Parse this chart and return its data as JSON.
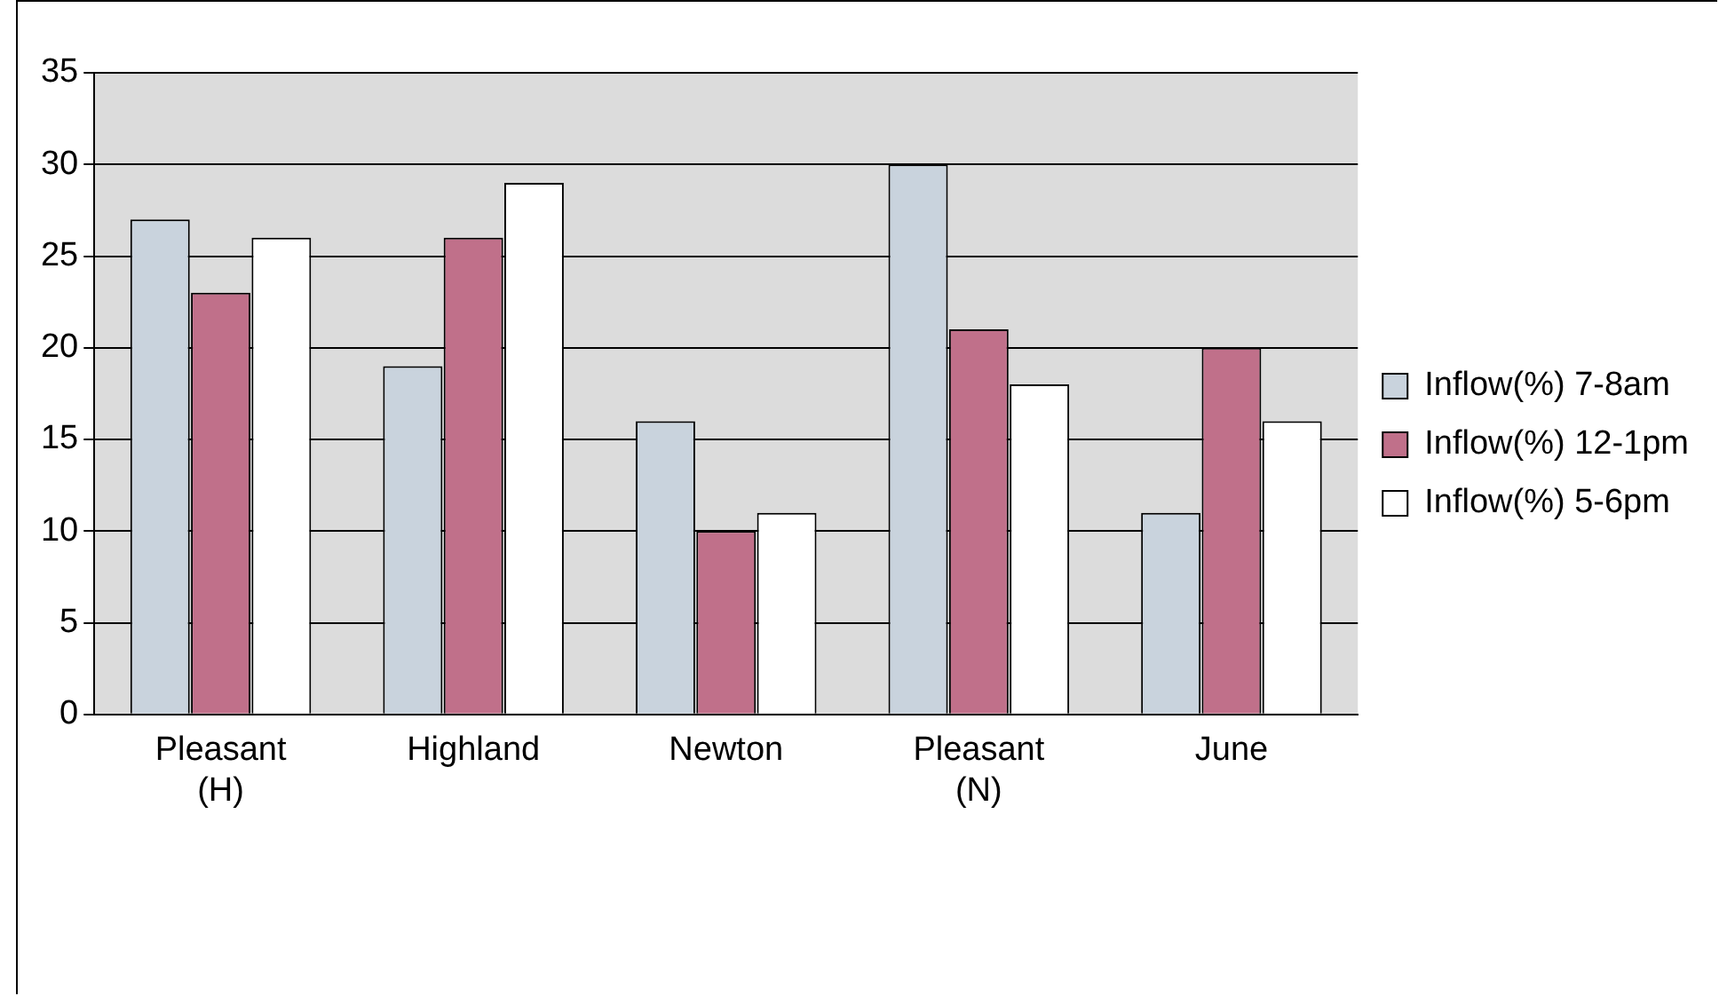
{
  "chart_data": {
    "type": "bar",
    "categories": [
      "Pleasant (H)",
      "Highland",
      "Newton",
      "Pleasant (N)",
      "June"
    ],
    "series": [
      {
        "name": "Inflow(%) 7-8am",
        "color": "#c9d3dd",
        "values": [
          27,
          19,
          16,
          30,
          11
        ]
      },
      {
        "name": "Inflow(%) 12-1pm",
        "color": "#c0708a",
        "values": [
          23,
          26,
          10,
          21,
          20
        ]
      },
      {
        "name": "Inflow(%) 5-6pm",
        "color": "#ffffff",
        "values": [
          26,
          29,
          11,
          18,
          16
        ]
      }
    ],
    "ylim": [
      0,
      35
    ],
    "yticks": [
      0,
      5,
      10,
      15,
      20,
      25,
      30,
      35
    ],
    "grid": "y",
    "legend": "right"
  }
}
